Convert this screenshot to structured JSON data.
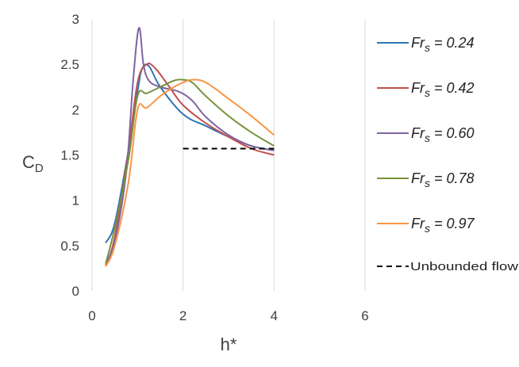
{
  "chart_data": {
    "type": "line",
    "xlabel": "h*",
    "ylabel": "C",
    "ylabel_sub": "D",
    "xlim": [
      0,
      6
    ],
    "ylim": [
      0,
      3
    ],
    "x_ticks": [
      "0",
      "2",
      "4",
      "6"
    ],
    "y_ticks": [
      "0",
      "0.5",
      "1",
      "1.5",
      "2",
      "2.5",
      "3"
    ],
    "grid": "vertical",
    "legend_position": "right",
    "series": [
      {
        "name_main": "Fr",
        "name_sub": "s",
        "name_value": " = 0.24",
        "color": "#2E75B6",
        "x": [
          0.3,
          0.5,
          0.8,
          1.0,
          1.1,
          1.25,
          1.5,
          2.0,
          2.5,
          3.0,
          3.5,
          4.0
        ],
        "y": [
          0.53,
          0.75,
          1.55,
          2.2,
          2.45,
          2.48,
          2.25,
          1.95,
          1.82,
          1.7,
          1.6,
          1.55
        ]
      },
      {
        "name_main": "Fr",
        "name_sub": "s",
        "name_value": " = 0.42",
        "color": "#C0504D",
        "x": [
          0.3,
          0.5,
          0.8,
          1.0,
          1.2,
          1.4,
          1.7,
          2.0,
          2.5,
          3.0,
          3.5,
          4.0
        ],
        "y": [
          0.28,
          0.6,
          1.55,
          2.3,
          2.5,
          2.45,
          2.25,
          2.05,
          1.85,
          1.7,
          1.57,
          1.5
        ]
      },
      {
        "name_main": "Fr",
        "name_sub": "s",
        "name_value": " = 0.60",
        "color": "#8064A2",
        "x": [
          0.3,
          0.5,
          0.75,
          0.9,
          1.03,
          1.13,
          1.25,
          1.5,
          1.9,
          2.2,
          2.5,
          3.0,
          3.5,
          4.0
        ],
        "y": [
          0.3,
          0.55,
          1.3,
          2.3,
          2.9,
          2.5,
          2.32,
          2.25,
          2.2,
          2.1,
          1.92,
          1.72,
          1.6,
          1.55
        ]
      },
      {
        "name_main": "Fr",
        "name_sub": "s",
        "name_value": " = 0.78",
        "color": "#77933C",
        "x": [
          0.3,
          0.5,
          0.8,
          1.0,
          1.2,
          1.5,
          1.8,
          2.0,
          2.2,
          2.5,
          3.0,
          3.5,
          4.0
        ],
        "y": [
          0.3,
          0.7,
          1.45,
          2.15,
          2.18,
          2.25,
          2.32,
          2.33,
          2.3,
          2.15,
          1.93,
          1.75,
          1.6
        ]
      },
      {
        "name_main": "Fr",
        "name_sub": "s",
        "name_value": " = 0.97",
        "color": "#F79646",
        "x": [
          0.3,
          0.5,
          0.8,
          1.0,
          1.2,
          1.5,
          1.8,
          2.0,
          2.2,
          2.5,
          3.0,
          3.5,
          4.0
        ],
        "y": [
          0.27,
          0.5,
          1.2,
          2.0,
          2.02,
          2.15,
          2.25,
          2.3,
          2.33,
          2.3,
          2.12,
          1.93,
          1.72
        ]
      }
    ],
    "reference_line": {
      "name": "Unbounded flow",
      "color": "#000000",
      "style": "dashed",
      "x": [
        2.0,
        4.0
      ],
      "y": [
        1.57,
        1.57
      ]
    }
  }
}
